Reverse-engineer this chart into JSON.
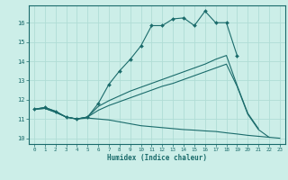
{
  "xlabel": "Humidex (Indice chaleur)",
  "ylabel": "",
  "xlim": [
    -0.5,
    23.5
  ],
  "ylim": [
    9.7,
    16.9
  ],
  "bg_color": "#cceee8",
  "line_color": "#1a6b6b",
  "grid_color": "#b0ddd5",
  "x_ticks": [
    0,
    1,
    2,
    3,
    4,
    5,
    6,
    7,
    8,
    9,
    10,
    11,
    12,
    13,
    14,
    15,
    16,
    17,
    18,
    19,
    20,
    21,
    22,
    23
  ],
  "y_ticks": [
    10,
    11,
    12,
    13,
    14,
    15,
    16
  ],
  "series": [
    {
      "x": [
        0,
        1,
        2,
        3,
        4,
        5,
        6,
        7,
        8,
        9,
        10,
        11,
        12,
        13,
        14,
        15,
        16,
        17,
        18,
        19
      ],
      "y": [
        11.5,
        11.6,
        11.4,
        11.1,
        11.0,
        11.1,
        11.8,
        12.8,
        13.5,
        14.1,
        14.8,
        15.85,
        15.85,
        16.2,
        16.25,
        15.85,
        16.6,
        16.0,
        16.0,
        14.3
      ],
      "marker": true,
      "linestyle": "-"
    },
    {
      "x": [
        0,
        1,
        2,
        3,
        4,
        5,
        6,
        7,
        8,
        9,
        10,
        11,
        12,
        13,
        14,
        15,
        16,
        17,
        18,
        19,
        20,
        21
      ],
      "y": [
        11.5,
        11.6,
        11.4,
        11.1,
        11.0,
        11.1,
        11.65,
        11.95,
        12.2,
        12.45,
        12.65,
        12.85,
        13.05,
        13.25,
        13.45,
        13.65,
        13.85,
        14.1,
        14.3,
        12.75,
        11.3,
        10.5
      ],
      "marker": false,
      "linestyle": "-"
    },
    {
      "x": [
        0,
        1,
        2,
        3,
        4,
        5,
        6,
        7,
        8,
        9,
        10,
        11,
        12,
        13,
        14,
        15,
        16,
        17,
        18,
        19,
        20,
        21,
        22
      ],
      "y": [
        11.5,
        11.55,
        11.35,
        11.1,
        11.0,
        11.1,
        11.45,
        11.7,
        11.9,
        12.1,
        12.3,
        12.5,
        12.7,
        12.85,
        13.05,
        13.25,
        13.45,
        13.65,
        13.85,
        12.7,
        11.25,
        10.45,
        10.05
      ],
      "marker": false,
      "linestyle": "-"
    },
    {
      "x": [
        0,
        1,
        2,
        3,
        4,
        5,
        6,
        7,
        8,
        9,
        10,
        11,
        12,
        13,
        14,
        15,
        16,
        17,
        18,
        19,
        20,
        21,
        22,
        23
      ],
      "y": [
        11.5,
        11.55,
        11.35,
        11.1,
        11.0,
        11.05,
        11.0,
        10.95,
        10.85,
        10.75,
        10.65,
        10.6,
        10.55,
        10.5,
        10.45,
        10.42,
        10.38,
        10.35,
        10.28,
        10.22,
        10.15,
        10.1,
        10.05,
        10.0
      ],
      "marker": false,
      "linestyle": "-"
    }
  ]
}
